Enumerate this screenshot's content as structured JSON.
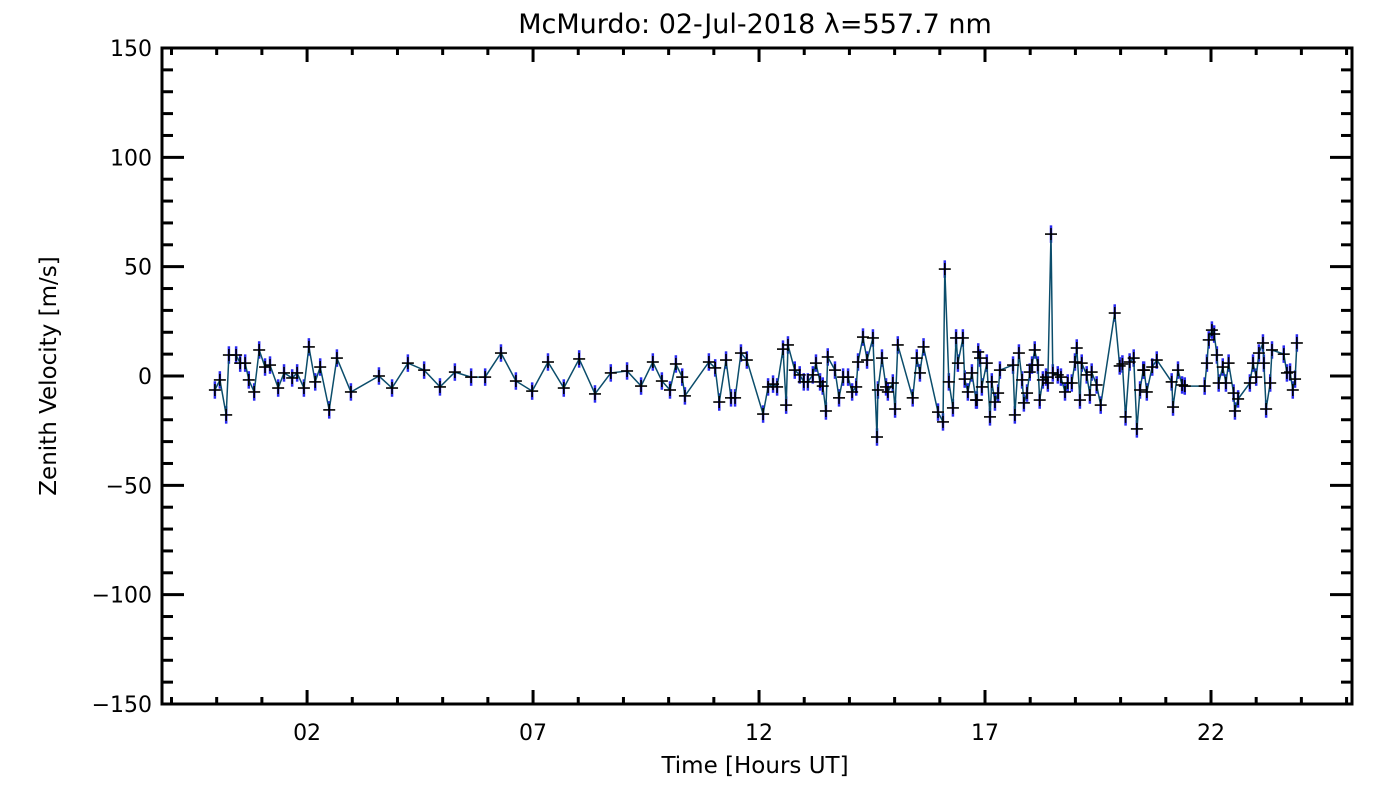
{
  "chart_data": {
    "type": "line",
    "title": "McMurdo: 02-Jul-2018 λ=557.7 nm",
    "xlabel": "Time [Hours UT]",
    "ylabel": "Zenith Velocity [m/s]",
    "xlim": [
      -1.21,
      25.12
    ],
    "ylim": [
      -150,
      150
    ],
    "x_major_ticks": [
      2,
      7,
      12,
      17,
      22
    ],
    "x_tick_labels": [
      "02",
      "07",
      "12",
      "17",
      "22"
    ],
    "x_minor_step": 1,
    "y_major_ticks": [
      -150,
      -100,
      -50,
      0,
      50,
      100,
      150
    ],
    "y_tick_labels": [
      "−150",
      "−100",
      "−50",
      "0",
      "50",
      "100",
      "150"
    ],
    "y_minor_step": 10,
    "grid": false,
    "error_bar_halfwidth": 4,
    "colors": {
      "line": "#0b4d6b",
      "error": "#2a2af0",
      "marker": "#000000",
      "axis": "#000000"
    },
    "series": [
      {
        "name": "zenith velocity",
        "x": [
          -0.04,
          0.07,
          0.21,
          0.27,
          0.43,
          0.52,
          0.63,
          0.71,
          0.83,
          0.94,
          1.07,
          1.18,
          1.36,
          1.49,
          1.67,
          1.78,
          1.93,
          2.04,
          2.18,
          2.29,
          2.49,
          2.66,
          2.97,
          3.59,
          3.88,
          4.23,
          4.59,
          4.94,
          5.27,
          5.63,
          5.94,
          6.29,
          6.62,
          6.98,
          7.33,
          7.68,
          8.02,
          8.37,
          8.72,
          9.08,
          9.39,
          9.65,
          9.85,
          10.03,
          10.16,
          10.3,
          10.36,
          10.89,
          11.03,
          11.12,
          11.27,
          11.38,
          11.47,
          11.6,
          11.73,
          12.09,
          12.2,
          12.31,
          12.4,
          12.53,
          12.6,
          12.64,
          12.79,
          12.9,
          12.99,
          13.08,
          13.19,
          13.26,
          13.35,
          13.41,
          13.48,
          13.52,
          13.68,
          13.77,
          13.86,
          13.97,
          14.06,
          14.15,
          14.19,
          14.3,
          14.39,
          14.52,
          14.61,
          14.63,
          14.72,
          14.81,
          14.85,
          14.96,
          15.01,
          15.07,
          15.4,
          15.49,
          15.56,
          15.64,
          15.96,
          16.07,
          16.11,
          16.2,
          16.29,
          16.36,
          16.4,
          16.51,
          16.55,
          16.62,
          16.71,
          16.8,
          16.82,
          16.85,
          16.89,
          16.93,
          17.04,
          17.11,
          17.15,
          17.22,
          17.29,
          17.33,
          17.62,
          17.66,
          17.75,
          17.82,
          17.86,
          17.93,
          17.99,
          18.04,
          18.1,
          18.17,
          18.21,
          18.28,
          18.35,
          18.39,
          18.46,
          18.5,
          18.61,
          18.68,
          18.77,
          18.83,
          18.92,
          18.99,
          19.03,
          19.1,
          19.14,
          19.25,
          19.32,
          19.36,
          19.47,
          19.56,
          19.87,
          19.98,
          20.04,
          20.11,
          20.2,
          20.29,
          20.36,
          20.43,
          20.5,
          20.52,
          20.58,
          20.7,
          20.8,
          21.13,
          21.16,
          21.27,
          21.36,
          21.42,
          21.86,
          21.91,
          21.95,
          22.02,
          22.07,
          22.13,
          22.17,
          22.26,
          22.33,
          22.39,
          22.5,
          22.53,
          22.6,
          22.86,
          22.93,
          23.0,
          23.06,
          23.15,
          23.17,
          23.22,
          23.31,
          23.35,
          23.61,
          23.68,
          23.75,
          23.81,
          23.86,
          23.9
        ],
        "y": [
          -6.4,
          -1.8,
          -17.8,
          9.6,
          9.6,
          5.9,
          5.9,
          -1.8,
          -7.3,
          11.9,
          4.1,
          5,
          -5.5,
          1.4,
          -0.9,
          1.4,
          -5.5,
          13.3,
          -2.7,
          4.1,
          -15.5,
          8.2,
          -7.3,
          0,
          -5.5,
          5.9,
          2.7,
          -5,
          1.8,
          -0.5,
          -0.5,
          10.5,
          -2.3,
          -6.9,
          6.4,
          -5.5,
          7.8,
          -8.2,
          1.4,
          2.3,
          -4.6,
          6.4,
          -2.3,
          -6.4,
          5.5,
          -0.5,
          -9.1,
          6.4,
          3.7,
          -11.9,
          7.3,
          -10,
          -10,
          10.5,
          7.3,
          -17.4,
          -5,
          -3.7,
          -5,
          12.3,
          -13.3,
          14.2,
          2.7,
          0.5,
          -2.7,
          -2.7,
          0.5,
          5.9,
          -2.7,
          -4.6,
          -16,
          8.7,
          2.7,
          -10,
          -0.5,
          -0.5,
          -7.3,
          -5,
          6.4,
          17.8,
          7.3,
          17.4,
          -27.9,
          -6.4,
          8.2,
          -5,
          -7.3,
          -3.2,
          -15.1,
          14.2,
          -10,
          8.2,
          1.4,
          13.3,
          -16.5,
          -21,
          48.9,
          -2.7,
          -14.6,
          17.4,
          5.9,
          17.4,
          -1.4,
          -7.3,
          1.4,
          -11,
          -11,
          11,
          8.2,
          -5,
          5.9,
          -18.7,
          -2.7,
          -11.9,
          -7.8,
          2.7,
          5,
          -17.8,
          10.5,
          -1.8,
          -12.3,
          -7.8,
          1.8,
          5,
          11.9,
          5,
          -11,
          -1.8,
          -0.5,
          -3.2,
          64.9,
          1.4,
          0.5,
          -0.5,
          -7.3,
          -3.2,
          -3.2,
          6.4,
          12.8,
          -11,
          5.9,
          0.5,
          -8.7,
          1.8,
          -4.1,
          -13.3,
          28.8,
          4.6,
          5.5,
          -18.7,
          6.4,
          8.2,
          -24.2,
          -6.4,
          2.7,
          2.7,
          -7.3,
          4.1,
          7.3,
          -2.7,
          -14.2,
          2.7,
          -4.1,
          -4.6,
          -4.6,
          5.9,
          16.5,
          21,
          19.2,
          9.6,
          -3.2,
          4.1,
          -3.2,
          5.9,
          -7.8,
          -16,
          -10.5,
          -3.2,
          5.9,
          -0.5,
          10.5,
          15.1,
          5.9,
          -15.1,
          -3.2,
          11.9,
          10,
          1.4,
          1.8,
          -6.4,
          -1.4,
          15.1
        ]
      }
    ]
  }
}
